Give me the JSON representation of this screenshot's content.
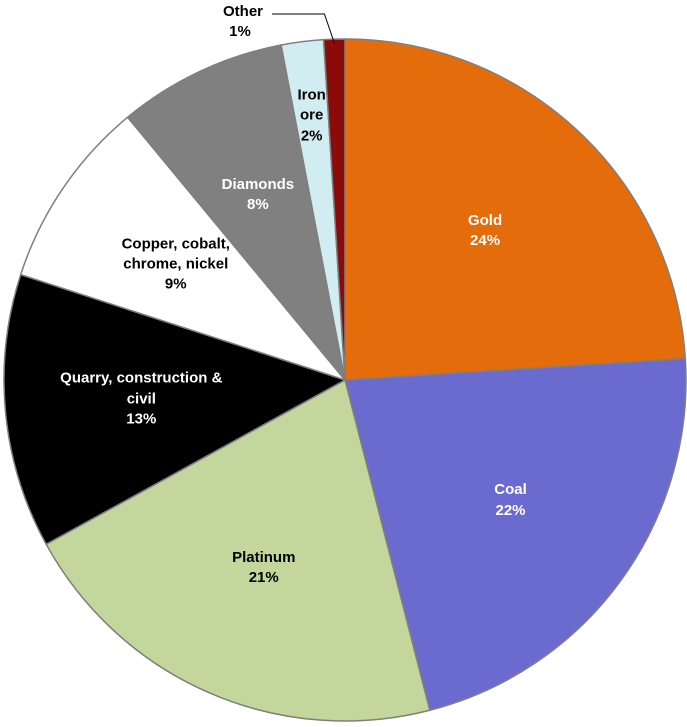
{
  "chart_data": {
    "type": "pie",
    "categories": [
      "Gold",
      "Coal",
      "Platinum",
      "Quarry, construction & civil",
      "Copper, cobalt, chrome, nickel",
      "Diamonds",
      "Iron ore",
      "Other"
    ],
    "values": [
      24,
      22,
      21,
      13,
      9,
      8,
      2,
      1
    ],
    "value_labels": [
      "24%",
      "22%",
      "21%",
      "13%",
      "9%",
      "8%",
      "2%",
      "1%"
    ],
    "colors": [
      "#e46c0a",
      "#6b6bcf",
      "#c3d69b",
      "#000000",
      "#ffffff",
      "#808080",
      "#d2edf1",
      "#8b0a0a"
    ]
  }
}
